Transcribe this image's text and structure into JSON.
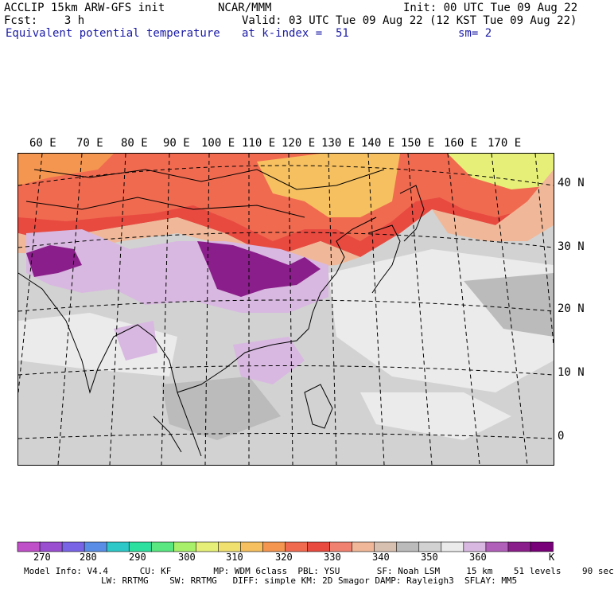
{
  "header": {
    "model": "ACCLIP 15km ARW-GFS init",
    "org": "NCAR/MMM",
    "init": "Init: 00 UTC Tue 09 Aug 22",
    "fcst": "Fcst:    3 h",
    "valid": "Valid: 03 UTC Tue 09 Aug 22 (12 KST Tue 09 Aug 22)",
    "field": "Equivalent potential temperature",
    "level": "at k-index =  51",
    "smooth": "sm= 2"
  },
  "map": {
    "lon_labels": [
      "60 E",
      "70 E",
      "80 E",
      "90 E",
      "100 E",
      "110 E",
      "120 E",
      "130 E",
      "140 E",
      "150 E",
      "160 E",
      "170 E"
    ],
    "lat_labels": [
      "40 N",
      "30 N",
      "20 N",
      "10 N",
      "0"
    ]
  },
  "colorbar": {
    "colors": [
      "#c050c8",
      "#9a4fd0",
      "#7a64e6",
      "#5a8ee6",
      "#2ec8c8",
      "#2ee0a0",
      "#5ae680",
      "#a8f06a",
      "#e6f078",
      "#f0e070",
      "#f6c060",
      "#f49650",
      "#f06a50",
      "#e84a40",
      "#f08070",
      "#f0b898",
      "#d8c0b0",
      "#bbbbbb",
      "#d2d2d2",
      "#ebebeb",
      "#d8b8e0",
      "#b060b8",
      "#8a1e8a",
      "#780078"
    ],
    "labels": [
      "270",
      "280",
      "290",
      "300",
      "310",
      "320",
      "330",
      "340",
      "350",
      "360",
      "K"
    ]
  },
  "model_info": {
    "line1": "Model Info: V4.4      CU: KF        MP: WDM 6class  PBL: YSU       SF: Noah LSM     15 km    51 levels    90 sec",
    "line2": "LW: RRTMG    SW: RRTMG   DIFF: simple KM: 2D Smagor DAMP: Rayleigh3  SFLAY: MM5"
  }
}
